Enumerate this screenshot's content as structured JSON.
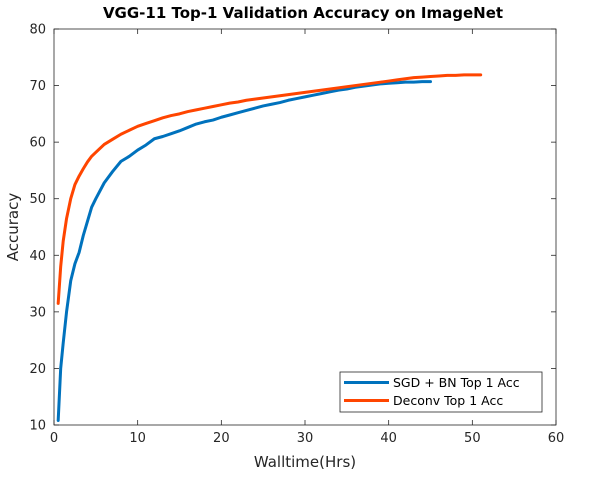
{
  "chart_data": {
    "type": "line",
    "title": "VGG-11 Top-1 Validation Accuracy on ImageNet",
    "xlabel": "Walltime(Hrs)",
    "ylabel": "Accuracy",
    "xlim": [
      0,
      60
    ],
    "ylim": [
      10,
      80
    ],
    "xticks": [
      "0",
      "10",
      "20",
      "30",
      "40",
      "50",
      "60"
    ],
    "yticks": [
      "10",
      "20",
      "30",
      "40",
      "50",
      "60",
      "70",
      "80"
    ],
    "grid": false,
    "box": true,
    "legend_position": "bottom-right",
    "series": [
      {
        "name": "SGD + BN Top 1 Acc",
        "color": "#0072BD",
        "x": [
          0.5,
          0.8,
          1.1,
          1.5,
          2.0,
          2.5,
          3.0,
          3.5,
          4.0,
          4.5,
          5.0,
          6.0,
          7.0,
          8.0,
          9.0,
          10.0,
          11.0,
          12.0,
          13.0,
          14.0,
          15.0,
          16.0,
          17.0,
          18.0,
          19.0,
          20.0,
          21.0,
          22.0,
          23.0,
          24.0,
          25.0,
          26.0,
          27.0,
          28.0,
          29.0,
          30.0,
          31.0,
          32.0,
          33.0,
          34.0,
          35.0,
          36.0,
          37.0,
          38.0,
          39.0,
          40.0,
          41.0,
          42.0,
          43.0,
          44.0,
          45.0
        ],
        "y": [
          10.8,
          20.0,
          24.5,
          30.0,
          35.5,
          38.5,
          40.5,
          43.5,
          46.0,
          48.5,
          50.0,
          52.8,
          54.8,
          56.6,
          57.5,
          58.6,
          59.5,
          60.6,
          61.0,
          61.5,
          62.0,
          62.6,
          63.2,
          63.6,
          63.9,
          64.4,
          64.8,
          65.2,
          65.6,
          66.0,
          66.4,
          66.7,
          67.0,
          67.4,
          67.7,
          68.0,
          68.3,
          68.6,
          68.9,
          69.2,
          69.4,
          69.7,
          69.9,
          70.1,
          70.3,
          70.4,
          70.5,
          70.6,
          70.6,
          70.7,
          70.7
        ]
      },
      {
        "name": "Deconv Top 1 Acc",
        "color": "#FF4500",
        "x": [
          0.5,
          0.8,
          1.1,
          1.5,
          2.0,
          2.5,
          3.0,
          3.5,
          4.0,
          4.5,
          5.0,
          6.0,
          7.0,
          8.0,
          9.0,
          10.0,
          11.0,
          12.0,
          13.0,
          14.0,
          15.0,
          16.0,
          17.0,
          18.0,
          19.0,
          20.0,
          21.0,
          22.0,
          23.0,
          24.0,
          25.0,
          26.0,
          27.0,
          28.0,
          29.0,
          30.0,
          31.0,
          32.0,
          33.0,
          34.0,
          35.0,
          36.0,
          37.0,
          38.0,
          39.0,
          40.0,
          41.0,
          42.0,
          43.0,
          44.0,
          45.0,
          46.0,
          47.0,
          48.0,
          49.0,
          50.0,
          51.0
        ],
        "y": [
          31.5,
          38.0,
          42.5,
          46.5,
          50.0,
          52.5,
          54.0,
          55.3,
          56.5,
          57.5,
          58.2,
          59.6,
          60.5,
          61.4,
          62.1,
          62.8,
          63.3,
          63.8,
          64.3,
          64.7,
          65.0,
          65.4,
          65.7,
          66.0,
          66.3,
          66.6,
          66.9,
          67.1,
          67.4,
          67.6,
          67.8,
          68.0,
          68.2,
          68.4,
          68.6,
          68.8,
          69.0,
          69.2,
          69.4,
          69.6,
          69.8,
          70.0,
          70.2,
          70.4,
          70.6,
          70.8,
          71.0,
          71.2,
          71.4,
          71.5,
          71.6,
          71.7,
          71.8,
          71.8,
          71.9,
          71.9,
          71.9
        ]
      }
    ]
  }
}
